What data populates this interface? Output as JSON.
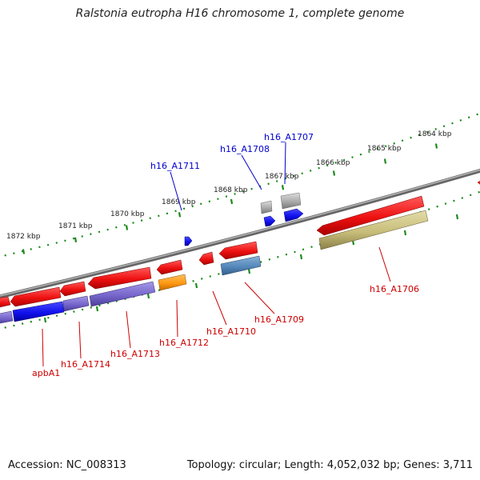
{
  "title": "Ralstonia eutropha H16 chromosome 1, complete genome",
  "footer": {
    "accession_label": "Accession:",
    "accession": "NC_008313",
    "topology_label": "Topology:",
    "topology": "circular",
    "length_label": "Length:",
    "length": "4,052,032 bp",
    "genes_label": "Genes:",
    "genes": "3,711"
  },
  "colors": {
    "backbone": "#888888",
    "tick_dots": "#1a8a1a",
    "label_forward": "#0000cc",
    "label_reverse": "#cc0000"
  },
  "scale_labels": [
    "1872 kbp",
    "1871 kbp",
    "1870 kbp",
    "1869 kbp",
    "1868 kbp",
    "1867 kbp",
    "1866 kbp",
    "1865 kbp",
    "1864 kbp"
  ],
  "gene_labels": [
    {
      "name": "h16_A1711",
      "strand": "forward"
    },
    {
      "name": "h16_A1708",
      "strand": "forward"
    },
    {
      "name": "h16_A1707",
      "strand": "forward"
    },
    {
      "name": "h16_A1706",
      "strand": "reverse"
    },
    {
      "name": "h16_A1709",
      "strand": "reverse"
    },
    {
      "name": "h16_A1710",
      "strand": "reverse"
    },
    {
      "name": "h16_A1712",
      "strand": "reverse"
    },
    {
      "name": "h16_A1713",
      "strand": "reverse"
    },
    {
      "name": "h16_A1714",
      "strand": "reverse"
    },
    {
      "name": "apbA1",
      "strand": "reverse"
    }
  ],
  "feature_colors": {
    "cds": "#ee1111",
    "forward_gene": "#1111ee",
    "forward_small": "#aaaaaa",
    "reverse_purple": "#7766cc",
    "reverse_steel": "#5588bb",
    "reverse_orange": "#ff9911",
    "reverse_khaki": "#c8bd7a"
  }
}
